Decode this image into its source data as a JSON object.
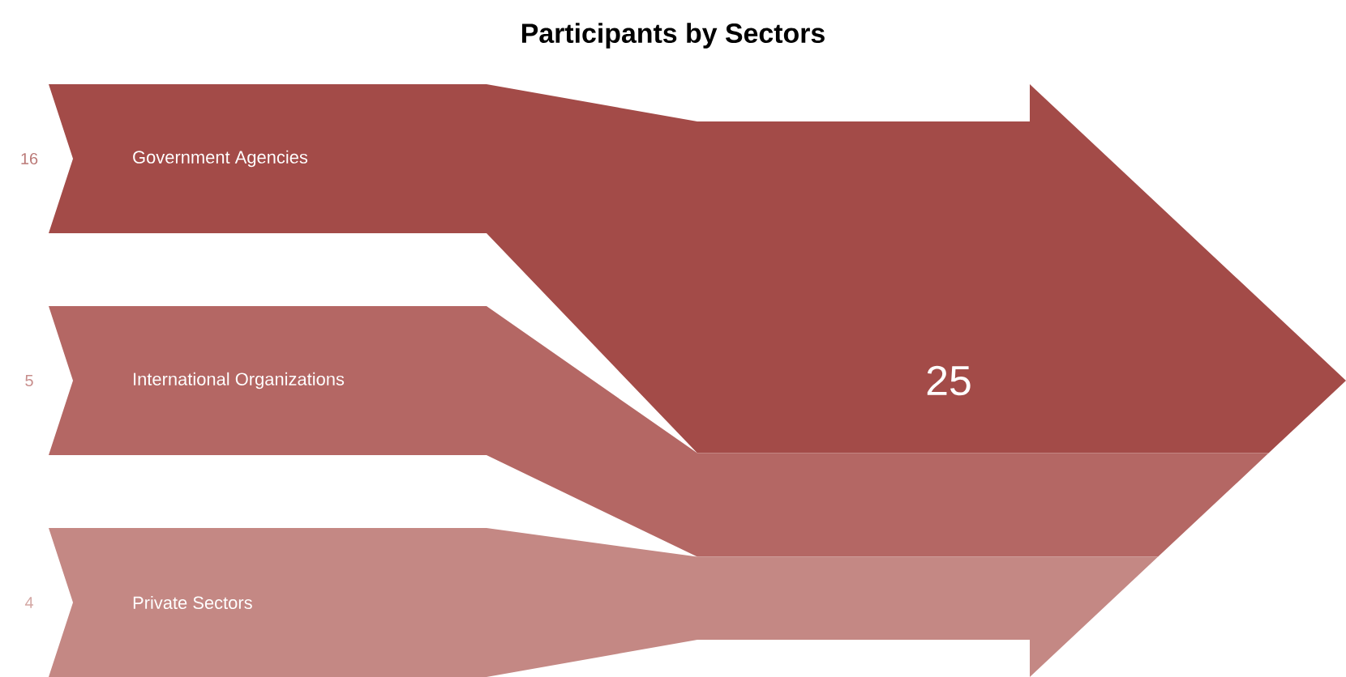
{
  "chart_data": {
    "type": "other",
    "title": "Participants by Sectors",
    "categories": [
      "Government Agencies",
      "International Organizations",
      "Private Sectors"
    ],
    "values": [
      16,
      5,
      4
    ],
    "colors": [
      "#a34b48",
      "#b46764",
      "#c48884"
    ],
    "data_labels": true,
    "totals": [
      "25"
    ]
  }
}
